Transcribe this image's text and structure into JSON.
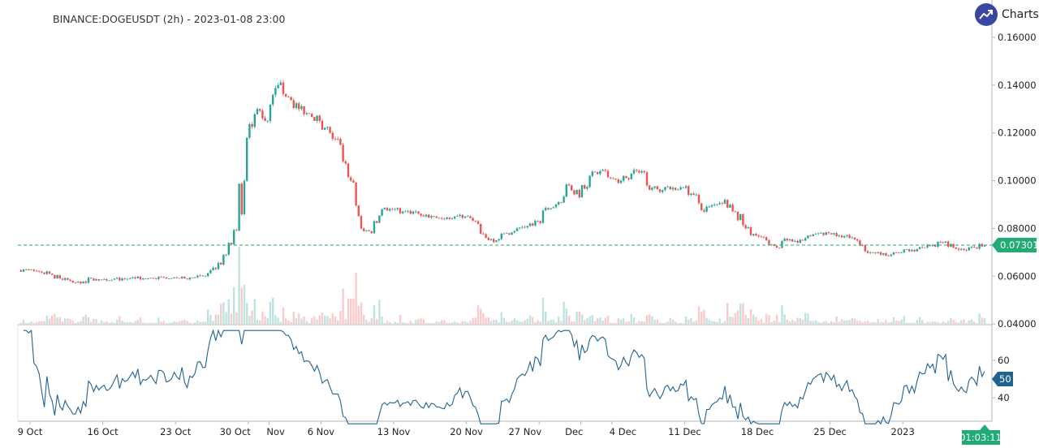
{
  "header": {
    "title": "BINANCE:DOGEUSDT (2h) - 2023-01-08 23:00",
    "brand_text": "Charts p",
    "brand_icon": "trend-up-icon"
  },
  "colors": {
    "up": "#26a69a",
    "down": "#ef5350",
    "rsi": "#21638f",
    "last_price": "#22ab74",
    "brand": "#3a47a2"
  },
  "chart_data": {
    "type": "candlestick",
    "symbol": "BINANCE:DOGEUSDT",
    "interval": "2h",
    "daily_close_start": "2022-10-08",
    "daily_closes": [
      0.0625,
      0.062,
      0.061,
      0.059,
      0.058,
      0.057,
      0.059,
      0.0585,
      0.0585,
      0.059,
      0.0595,
      0.059,
      0.059,
      0.0595,
      0.0595,
      0.059,
      0.0595,
      0.06,
      0.063,
      0.069,
      0.079,
      0.118,
      0.13,
      0.125,
      0.14,
      0.135,
      0.13,
      0.128,
      0.125,
      0.12,
      0.115,
      0.1,
      0.08,
      0.078,
      0.088,
      0.088,
      0.087,
      0.087,
      0.085,
      0.085,
      0.084,
      0.085,
      0.085,
      0.083,
      0.076,
      0.075,
      0.078,
      0.08,
      0.081,
      0.083,
      0.088,
      0.091,
      0.098,
      0.093,
      0.102,
      0.104,
      0.101,
      0.1,
      0.103,
      0.104,
      0.097,
      0.096,
      0.097,
      0.097,
      0.094,
      0.087,
      0.09,
      0.092,
      0.087,
      0.08,
      0.077,
      0.075,
      0.072,
      0.075,
      0.074,
      0.077,
      0.078,
      0.078,
      0.077,
      0.076,
      0.073,
      0.07,
      0.069,
      0.069,
      0.07,
      0.071,
      0.072,
      0.073,
      0.074,
      0.072,
      0.071,
      0.072,
      0.07301
    ],
    "price_axis": {
      "ticks": [
        "0.16000",
        "0.14000",
        "0.12000",
        "0.10000",
        "0.08000",
        "0.06000",
        "0.04000"
      ],
      "range": [
        0.04,
        0.16
      ]
    },
    "last_price": "0.07301",
    "time_axis": {
      "ticks": [
        "9 Oct",
        "16 Oct",
        "23 Oct",
        "30 Oct",
        "Nov",
        "6 Nov",
        "13 Nov",
        "20 Nov",
        "27 Nov",
        "Dec",
        "4 Dec",
        "11 Dec",
        "18 Dec",
        "25 Dec",
        "2023"
      ],
      "tick_days": [
        1,
        8,
        15,
        22,
        24,
        29,
        36,
        43,
        50,
        54,
        57,
        64,
        71,
        78,
        85
      ]
    },
    "rsi": {
      "axis_ticks": [
        "60",
        "40"
      ],
      "range": [
        26,
        76
      ],
      "period": 14,
      "last_value": "50"
    },
    "countdown": "01:03:11"
  }
}
